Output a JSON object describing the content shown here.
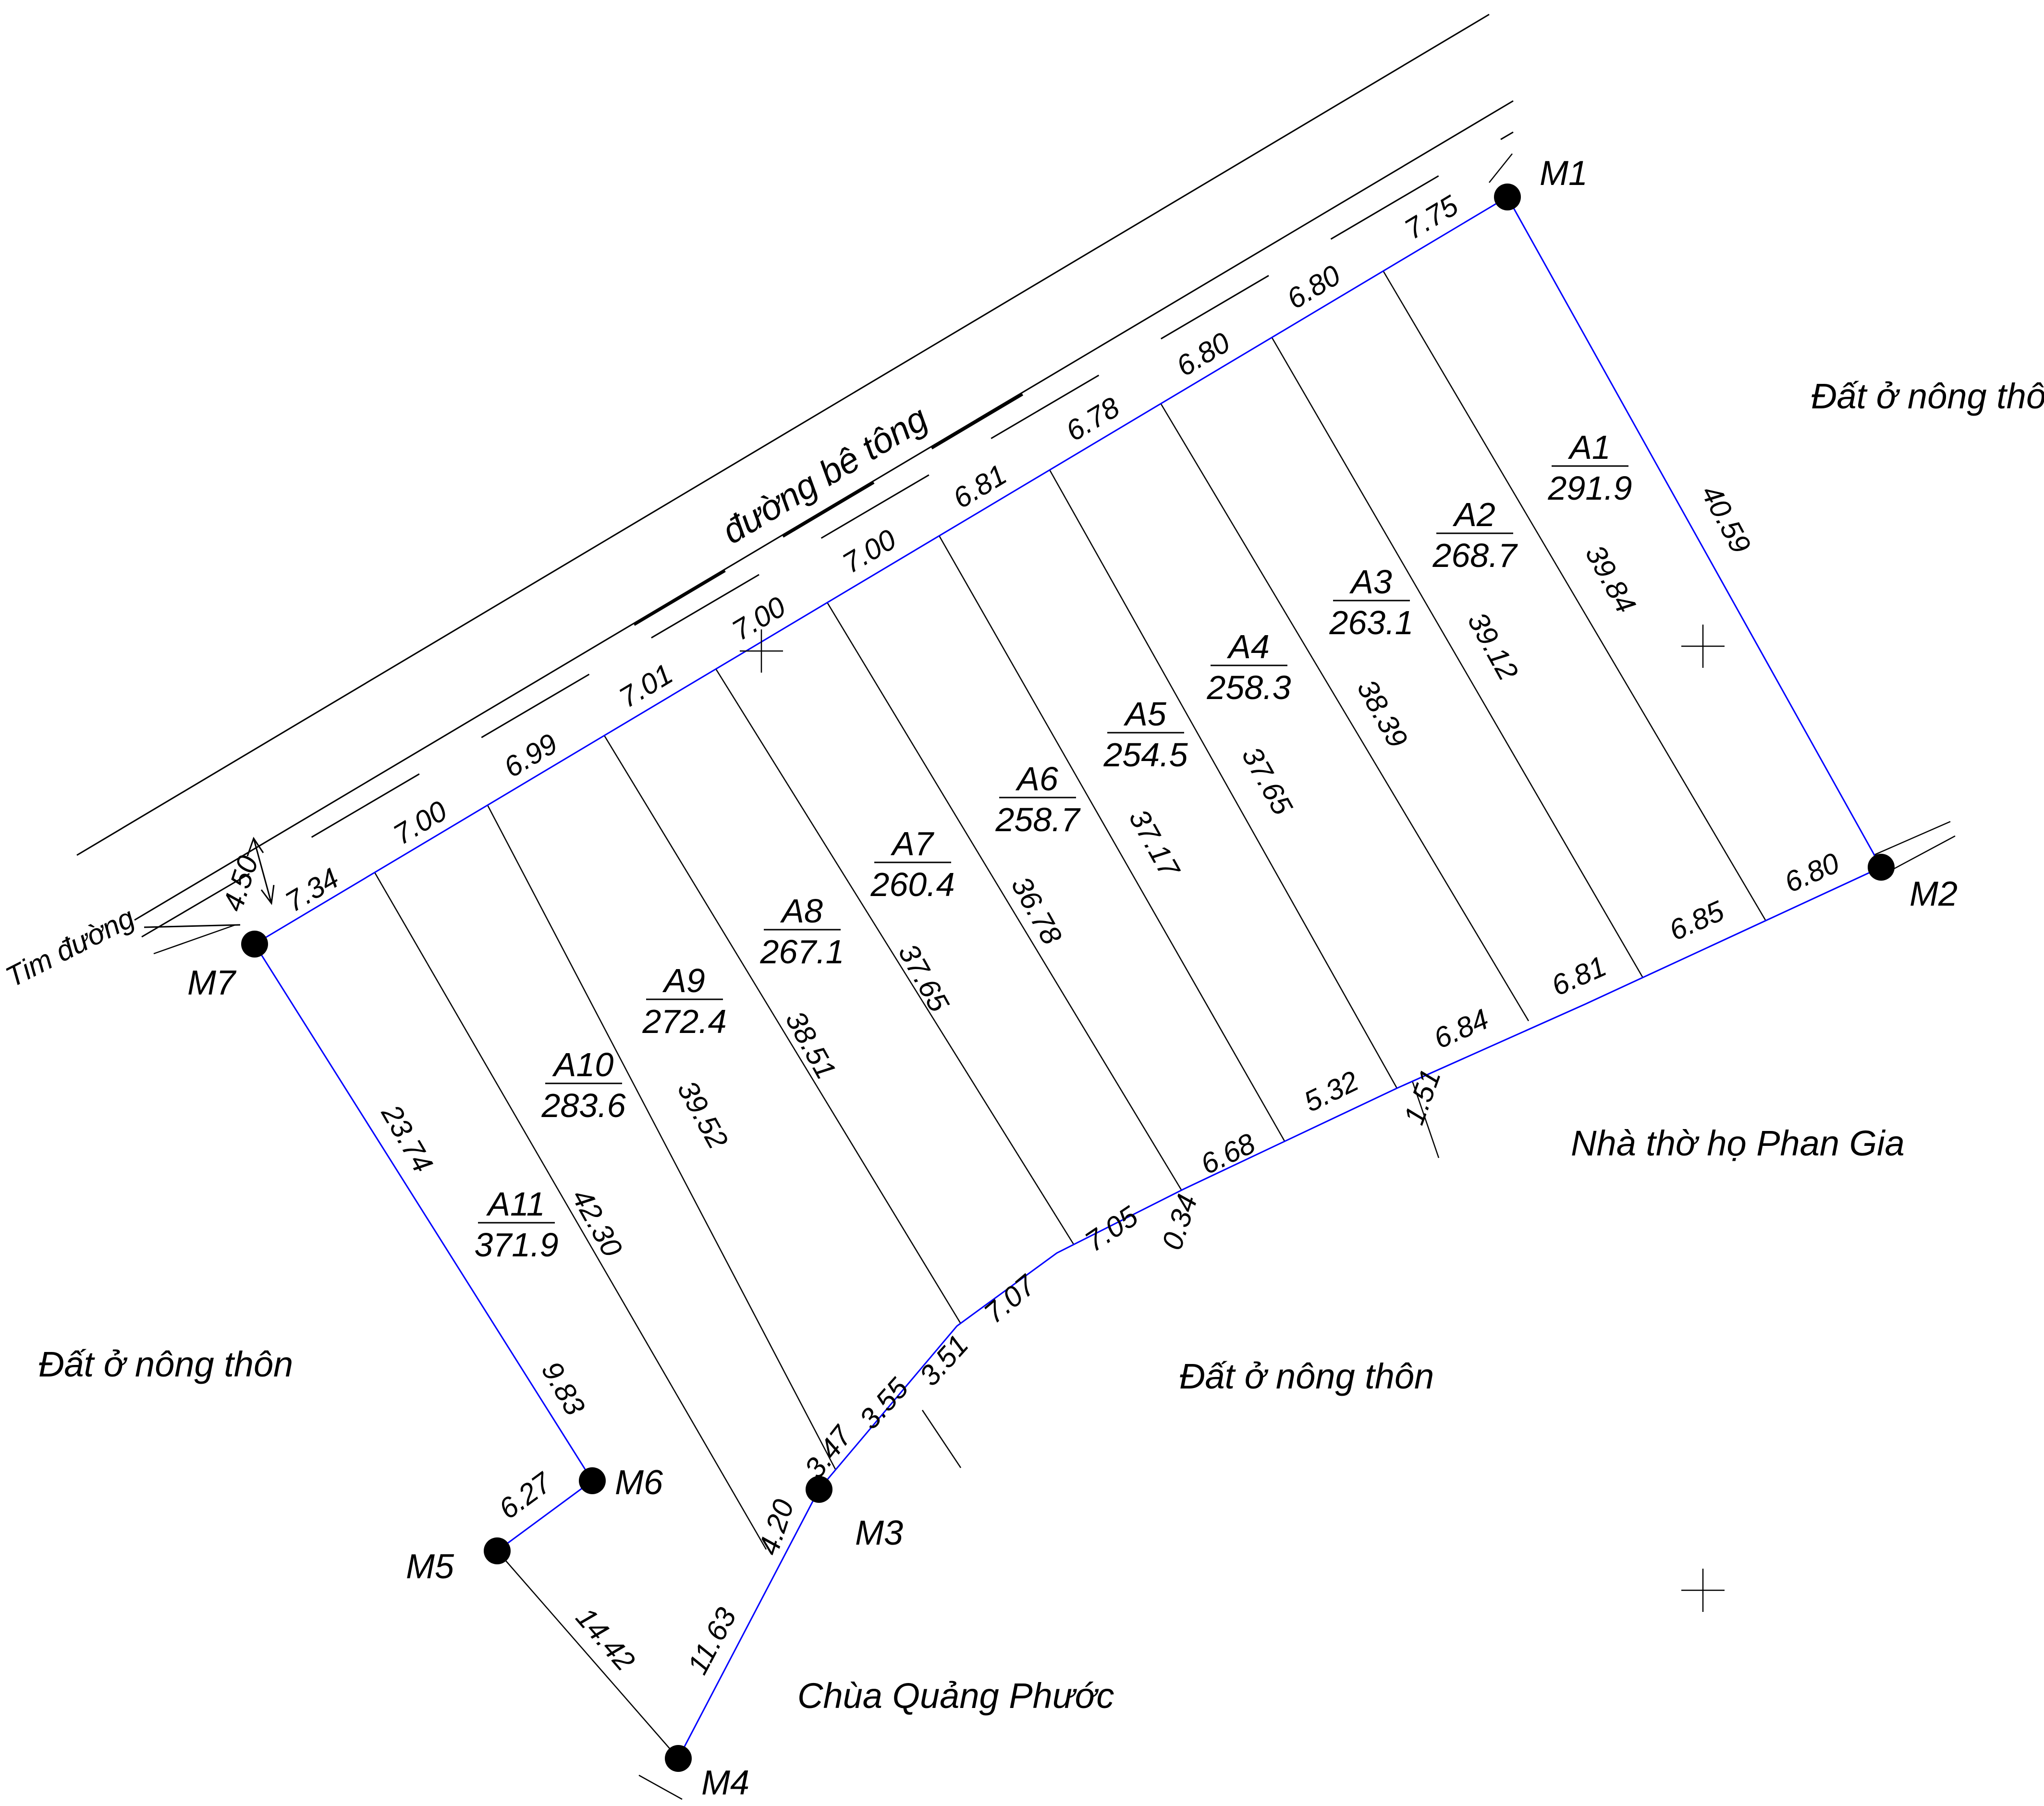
{
  "colors": {
    "boundary": "#0000ff",
    "lot_line": "#000000",
    "road_line": "#000000",
    "marker": "#000000",
    "background": "#ffffff"
  },
  "corners": [
    {
      "id": "M1",
      "label": "M1"
    },
    {
      "id": "M2",
      "label": "M2"
    },
    {
      "id": "M3",
      "label": "M3"
    },
    {
      "id": "M4",
      "label": "M4"
    },
    {
      "id": "M5",
      "label": "M5"
    },
    {
      "id": "M6",
      "label": "M6"
    },
    {
      "id": "M7",
      "label": "M7"
    }
  ],
  "boundary_dimensions": {
    "M1_M2": "40.59",
    "M7_M6_a": "23.74",
    "M7_M6_b": "9.83",
    "M6_M5": "6.27",
    "M5_M4": "14.42",
    "M4_M3": "11.63",
    "road_frontage": [
      "7.75",
      "6.80",
      "6.80",
      "6.78",
      "6.81",
      "7.00",
      "7.00",
      "7.01",
      "6.99",
      "7.00",
      "7.34"
    ],
    "rear_edge": [
      "6.80",
      "6.85",
      "6.81",
      "6.84",
      "1.51",
      "5.32",
      "6.68",
      "0.34",
      "7.05",
      "7.07",
      "3.51",
      "3.55",
      "3.47",
      "4.20"
    ]
  },
  "lots": [
    {
      "name": "A1",
      "area": "291.9",
      "depth": "39.84"
    },
    {
      "name": "A2",
      "area": "268.7",
      "depth": "39.12"
    },
    {
      "name": "A3",
      "area": "263.1",
      "depth": "38.39"
    },
    {
      "name": "A4",
      "area": "258.3",
      "depth": "37.65"
    },
    {
      "name": "A5",
      "area": "254.5",
      "depth": "37.17"
    },
    {
      "name": "A6",
      "area": "258.7",
      "depth": "36.78"
    },
    {
      "name": "A7",
      "area": "260.4",
      "depth": "37.65"
    },
    {
      "name": "A8",
      "area": "267.1",
      "depth": "38.51"
    },
    {
      "name": "A9",
      "area": "272.4",
      "depth": "39.52"
    },
    {
      "name": "A10",
      "area": "283.6",
      "depth": "42.30"
    },
    {
      "name": "A11",
      "area": "371.9",
      "depth": ""
    }
  ],
  "road": {
    "name": "đường bê tông",
    "centerline_label": "Tim đường",
    "half_width": "4.50"
  },
  "regions": {
    "east": "Đất ở nông thôn",
    "west": "Đất ở nông thôn",
    "south": "Đất ở nông thôn",
    "church": "Nhà thờ họ Phan Gia",
    "pagoda": "Chùa Quảng Phước"
  }
}
